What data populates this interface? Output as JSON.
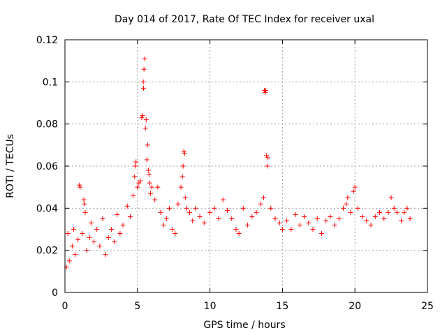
{
  "chart_data": {
    "type": "scatter",
    "title": "Day 014 of 2017, Rate Of TEC Index for receiver uxal",
    "xlabel": "GPS time / hours",
    "ylabel": "ROTI / TECUs",
    "xlim": [
      0,
      25
    ],
    "ylim": [
      0,
      0.12
    ],
    "xticks": [
      0,
      5,
      10,
      15,
      20,
      25
    ],
    "xtick_labels": [
      "0",
      "5",
      "10",
      "15",
      "20",
      "25"
    ],
    "yticks": [
      0,
      0.02,
      0.04,
      0.06,
      0.08,
      0.1,
      0.12
    ],
    "ytick_labels": [
      "0",
      "0.02",
      "0.04",
      "0.06",
      "0.08",
      "0.1",
      "0.12"
    ],
    "grid": true,
    "marker": "+",
    "marker_color": "#ff0000",
    "series": [
      {
        "name": "ROTI",
        "points": [
          [
            0.1,
            0.012
          ],
          [
            0.2,
            0.028
          ],
          [
            0.3,
            0.015
          ],
          [
            0.5,
            0.022
          ],
          [
            0.6,
            0.03
          ],
          [
            0.7,
            0.018
          ],
          [
            0.9,
            0.025
          ],
          [
            1.0,
            0.051
          ],
          [
            1.05,
            0.05
          ],
          [
            1.2,
            0.028
          ],
          [
            1.3,
            0.044
          ],
          [
            1.35,
            0.042
          ],
          [
            1.4,
            0.038
          ],
          [
            1.5,
            0.02
          ],
          [
            1.7,
            0.026
          ],
          [
            1.8,
            0.033
          ],
          [
            2.0,
            0.024
          ],
          [
            2.2,
            0.03
          ],
          [
            2.4,
            0.022
          ],
          [
            2.6,
            0.035
          ],
          [
            2.8,
            0.018
          ],
          [
            3.0,
            0.026
          ],
          [
            3.2,
            0.03
          ],
          [
            3.4,
            0.024
          ],
          [
            3.6,
            0.037
          ],
          [
            3.8,
            0.028
          ],
          [
            4.0,
            0.032
          ],
          [
            4.3,
            0.041
          ],
          [
            4.5,
            0.036
          ],
          [
            4.7,
            0.046
          ],
          [
            4.8,
            0.055
          ],
          [
            4.85,
            0.06
          ],
          [
            4.9,
            0.062
          ],
          [
            5.0,
            0.05
          ],
          [
            5.1,
            0.052
          ],
          [
            5.2,
            0.053
          ],
          [
            5.3,
            0.083
          ],
          [
            5.35,
            0.084
          ],
          [
            5.4,
            0.1
          ],
          [
            5.42,
            0.097
          ],
          [
            5.45,
            0.106
          ],
          [
            5.5,
            0.111
          ],
          [
            5.55,
            0.078
          ],
          [
            5.6,
            0.082
          ],
          [
            5.65,
            0.063
          ],
          [
            5.7,
            0.07
          ],
          [
            5.75,
            0.058
          ],
          [
            5.8,
            0.056
          ],
          [
            5.85,
            0.052
          ],
          [
            5.9,
            0.047
          ],
          [
            6.0,
            0.05
          ],
          [
            6.2,
            0.044
          ],
          [
            6.4,
            0.05
          ],
          [
            6.6,
            0.038
          ],
          [
            6.8,
            0.032
          ],
          [
            7.0,
            0.035
          ],
          [
            7.2,
            0.04
          ],
          [
            7.4,
            0.03
          ],
          [
            7.6,
            0.028
          ],
          [
            7.8,
            0.042
          ],
          [
            8.0,
            0.05
          ],
          [
            8.1,
            0.055
          ],
          [
            8.15,
            0.06
          ],
          [
            8.2,
            0.067
          ],
          [
            8.25,
            0.066
          ],
          [
            8.3,
            0.045
          ],
          [
            8.4,
            0.04
          ],
          [
            8.6,
            0.038
          ],
          [
            8.8,
            0.034
          ],
          [
            9.0,
            0.04
          ],
          [
            9.3,
            0.036
          ],
          [
            9.6,
            0.033
          ],
          [
            10.0,
            0.038
          ],
          [
            10.3,
            0.04
          ],
          [
            10.6,
            0.035
          ],
          [
            10.9,
            0.044
          ],
          [
            11.2,
            0.039
          ],
          [
            11.5,
            0.035
          ],
          [
            11.8,
            0.03
          ],
          [
            12.0,
            0.028
          ],
          [
            12.3,
            0.04
          ],
          [
            12.6,
            0.032
          ],
          [
            12.9,
            0.036
          ],
          [
            13.2,
            0.038
          ],
          [
            13.5,
            0.042
          ],
          [
            13.7,
            0.045
          ],
          [
            13.75,
            0.096
          ],
          [
            13.8,
            0.095
          ],
          [
            13.85,
            0.096
          ],
          [
            13.9,
            0.065
          ],
          [
            13.95,
            0.06
          ],
          [
            14.0,
            0.064
          ],
          [
            14.2,
            0.04
          ],
          [
            14.5,
            0.035
          ],
          [
            14.8,
            0.033
          ],
          [
            15.0,
            0.03
          ],
          [
            15.3,
            0.034
          ],
          [
            15.6,
            0.03
          ],
          [
            15.9,
            0.037
          ],
          [
            16.2,
            0.032
          ],
          [
            16.5,
            0.036
          ],
          [
            16.8,
            0.033
          ],
          [
            17.1,
            0.03
          ],
          [
            17.4,
            0.035
          ],
          [
            17.7,
            0.028
          ],
          [
            18.0,
            0.034
          ],
          [
            18.3,
            0.036
          ],
          [
            18.6,
            0.032
          ],
          [
            18.9,
            0.035
          ],
          [
            19.2,
            0.04
          ],
          [
            19.4,
            0.042
          ],
          [
            19.5,
            0.045
          ],
          [
            19.7,
            0.038
          ],
          [
            19.9,
            0.048
          ],
          [
            20.0,
            0.05
          ],
          [
            20.2,
            0.04
          ],
          [
            20.5,
            0.036
          ],
          [
            20.8,
            0.034
          ],
          [
            21.1,
            0.032
          ],
          [
            21.4,
            0.036
          ],
          [
            21.7,
            0.038
          ],
          [
            22.0,
            0.035
          ],
          [
            22.3,
            0.038
          ],
          [
            22.5,
            0.045
          ],
          [
            22.7,
            0.04
          ],
          [
            22.9,
            0.038
          ],
          [
            23.2,
            0.034
          ],
          [
            23.4,
            0.038
          ],
          [
            23.6,
            0.04
          ],
          [
            23.8,
            0.035
          ]
        ]
      }
    ]
  }
}
